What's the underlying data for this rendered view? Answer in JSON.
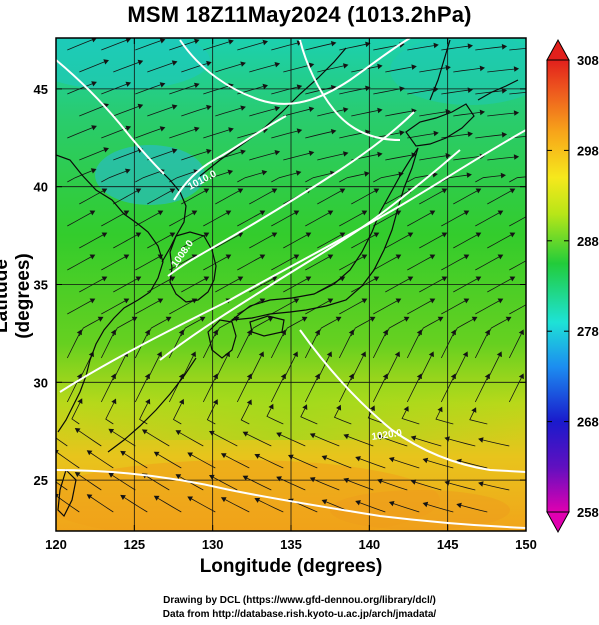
{
  "figure": {
    "title": "MSM 18Z11May2024 (1013.2hPa)",
    "x_axis_label": "Longitude (degrees)",
    "y_axis_label": "Latitude  (degrees)",
    "credit_lines": [
      "Drawing by DCL (https://www.gfd-dennou.org/library/dcl/)",
      "Data from http://database.rish.kyoto-u.ac.jp/arch/jmadata/"
    ]
  },
  "map": {
    "lon_range": [
      120,
      150
    ],
    "lat_range": [
      22.4,
      47.6
    ],
    "lon_ticks": [
      120,
      125,
      130,
      135,
      140,
      145,
      150
    ],
    "lat_ticks": [
      25,
      30,
      35,
      40,
      45
    ],
    "gridlines": true,
    "lon_gridlines": [
      125,
      130,
      135,
      140,
      145
    ],
    "lat_gridlines": [
      25,
      30,
      35,
      40,
      45
    ],
    "shading_field": "temperature (K)",
    "overlay": "wind streamlines with arrowheads",
    "contour_field": "pressure (hPa), white lines",
    "contour_labels": [
      "1010.0",
      "1008.0",
      "1020.0"
    ]
  },
  "colorbar": {
    "ticks": [
      258,
      268,
      278,
      288,
      298,
      308
    ],
    "range": [
      258,
      308
    ],
    "placement": "right",
    "colors": [
      "#e000b0",
      "#1a1acc",
      "#1c8cf0",
      "#1ee2d6",
      "#22cc3a",
      "#b8e618",
      "#f6e81c",
      "#f7a51a",
      "#ee5a1e",
      "#e2201c"
    ]
  },
  "chart_data": {
    "type": "heatmap",
    "title": "MSM 18Z11May2024 (1013.2hPa)",
    "xlabel": "Longitude (degrees)",
    "ylabel": "Latitude  (degrees)",
    "xlim": [
      120,
      150
    ],
    "ylim": [
      22.4,
      47.6
    ],
    "x_ticks": [
      120,
      125,
      130,
      135,
      140,
      145,
      150
    ],
    "y_ticks": [
      25,
      30,
      35,
      40,
      45
    ],
    "color_scale": {
      "min": 258,
      "max": 308,
      "ticks": [
        258,
        268,
        278,
        288,
        298,
        308
      ]
    },
    "contour_labels": [
      "1010.0",
      "1008.0",
      "1020.0"
    ],
    "grid": true,
    "legend": "colorbar at right"
  }
}
